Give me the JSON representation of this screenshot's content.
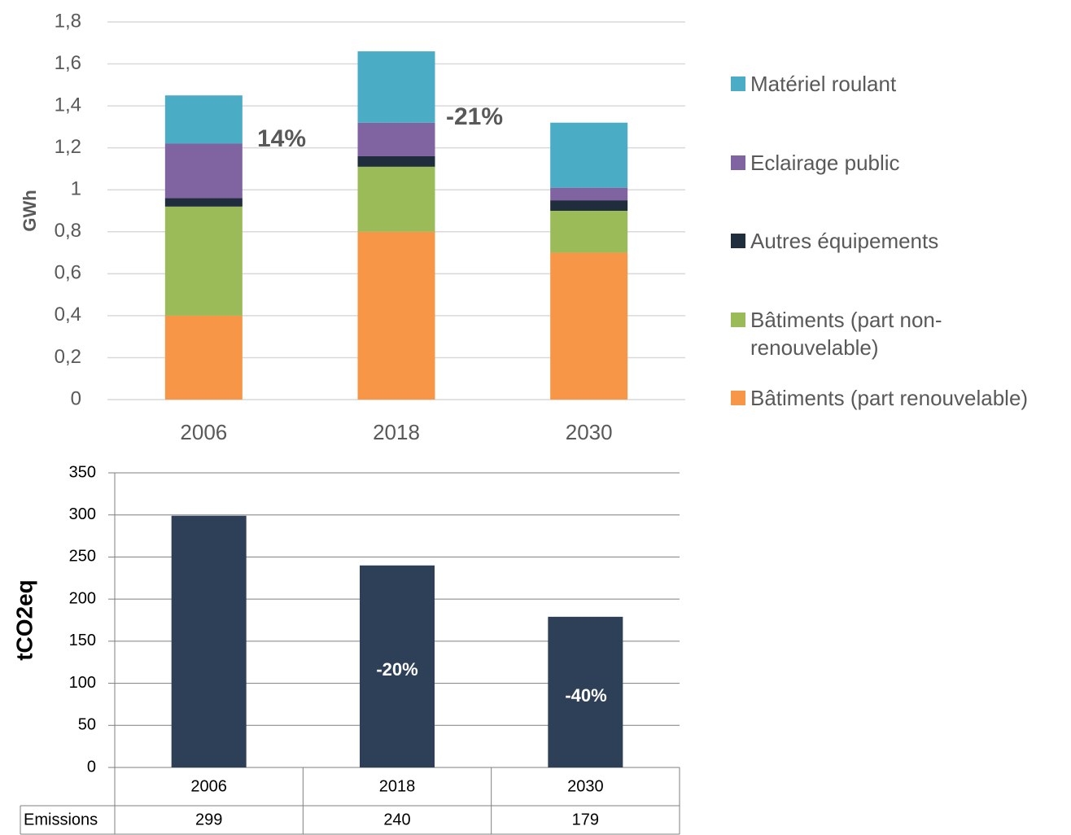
{
  "chart_data": [
    {
      "type": "stacked_bar",
      "y_label": "GWh",
      "categories": [
        "2006",
        "2018",
        "2030"
      ],
      "series": [
        {
          "name": "Bâtiments (part renouvelable)",
          "color": "#f79646",
          "values": [
            0.4,
            0.8,
            0.7
          ]
        },
        {
          "name": "Bâtiments (part non-renouvelable)",
          "color": "#9bbb59",
          "values": [
            0.52,
            0.31,
            0.2
          ]
        },
        {
          "name": "Autres équipements",
          "color": "#1f2d3d",
          "values": [
            0.04,
            0.05,
            0.05
          ]
        },
        {
          "name": "Eclairage public",
          "color": "#8064a2",
          "values": [
            0.26,
            0.16,
            0.06
          ]
        },
        {
          "name": "Matériel roulant",
          "color": "#4bacc6",
          "values": [
            0.23,
            0.34,
            0.31
          ]
        }
      ],
      "ylim": [
        0,
        1.8
      ],
      "yticks": [
        0,
        {
          "value": 0.2,
          "label": "0,2"
        },
        {
          "value": 0.4,
          "label": "0,4"
        },
        {
          "value": 0.6,
          "label": "0,6"
        },
        {
          "value": 0.8,
          "label": "0,8"
        },
        1,
        {
          "value": 1.2,
          "label": "1,2"
        },
        {
          "value": 1.4,
          "label": "1,4"
        },
        {
          "value": 1.6,
          "label": "1,6"
        },
        {
          "value": 1.8,
          "label": "1,8"
        }
      ],
      "grid": true,
      "legend": "right",
      "annotations": [
        "14%",
        "-21%"
      ]
    },
    {
      "type": "bar",
      "y_label": "tCO2eq",
      "categories": [
        "2006",
        "2018",
        "2030"
      ],
      "series": [
        {
          "name": "Emissions",
          "color": "#2e4057",
          "values": [
            299,
            240,
            179
          ]
        }
      ],
      "ylim": [
        0,
        350
      ],
      "yticks": [
        0,
        50,
        100,
        150,
        200,
        250,
        300,
        350
      ],
      "grid": true,
      "annotations": [
        "-20%",
        "-40%"
      ]
    }
  ]
}
